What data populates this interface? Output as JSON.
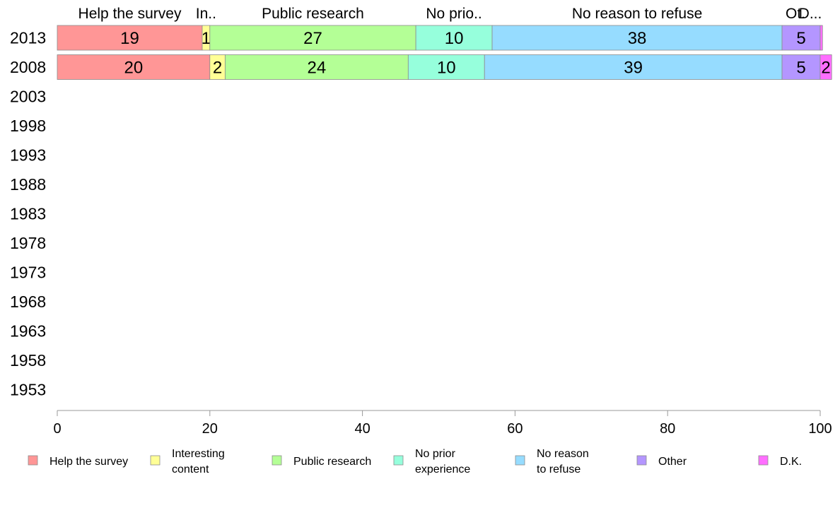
{
  "chart_data": {
    "type": "bar",
    "orientation": "horizontal",
    "stacked": true,
    "categories": [
      "2013",
      "2008",
      "2003",
      "1998",
      "1993",
      "1988",
      "1983",
      "1978",
      "1973",
      "1968",
      "1963",
      "1958",
      "1953"
    ],
    "series": [
      {
        "name": "Help the survey",
        "color": "#ff9696",
        "values": [
          19,
          20,
          null,
          null,
          null,
          null,
          null,
          null,
          null,
          null,
          null,
          null,
          null
        ]
      },
      {
        "name": "Interesting content",
        "color": "#ffff96",
        "values": [
          1,
          2,
          null,
          null,
          null,
          null,
          null,
          null,
          null,
          null,
          null,
          null,
          null
        ]
      },
      {
        "name": "Public research",
        "color": "#b4ff96",
        "values": [
          27,
          24,
          null,
          null,
          null,
          null,
          null,
          null,
          null,
          null,
          null,
          null,
          null
        ]
      },
      {
        "name": "No prior experience",
        "color": "#96ffdc",
        "values": [
          10,
          10,
          null,
          null,
          null,
          null,
          null,
          null,
          null,
          null,
          null,
          null,
          null
        ]
      },
      {
        "name": "No reason to refuse",
        "color": "#96dcff",
        "values": [
          38,
          39,
          null,
          null,
          null,
          null,
          null,
          null,
          null,
          null,
          null,
          null,
          null
        ]
      },
      {
        "name": "Other",
        "color": "#b496ff",
        "values": [
          5,
          5,
          null,
          null,
          null,
          null,
          null,
          null,
          null,
          null,
          null,
          null,
          null
        ]
      },
      {
        "name": "D.K.",
        "color": "#ff6eff",
        "values": [
          0.3,
          1.5,
          null,
          null,
          null,
          null,
          null,
          null,
          null,
          null,
          null,
          null,
          null
        ]
      }
    ],
    "segment_labels": [
      [
        "19",
        "1",
        "27",
        "10",
        "38",
        "5",
        ""
      ],
      [
        "20",
        "2",
        "24",
        "10",
        "39",
        "5",
        "2"
      ]
    ],
    "top_labels": [
      "Help the survey",
      "In..",
      "Public research",
      "No prio..",
      "No reason to refuse",
      "Ot.",
      "D..."
    ],
    "legend_labels": [
      [
        "Help the survey"
      ],
      [
        "Interesting",
        "content"
      ],
      [
        "Public research"
      ],
      [
        "No prior",
        "experience"
      ],
      [
        "No reason",
        "to refuse"
      ],
      [
        "Other"
      ],
      [
        "D.K."
      ]
    ],
    "xlim": [
      0,
      100
    ],
    "x_ticks": [
      "0",
      "20",
      "40",
      "60",
      "80",
      "100"
    ],
    "grid": false,
    "legend_position": "bottom"
  }
}
